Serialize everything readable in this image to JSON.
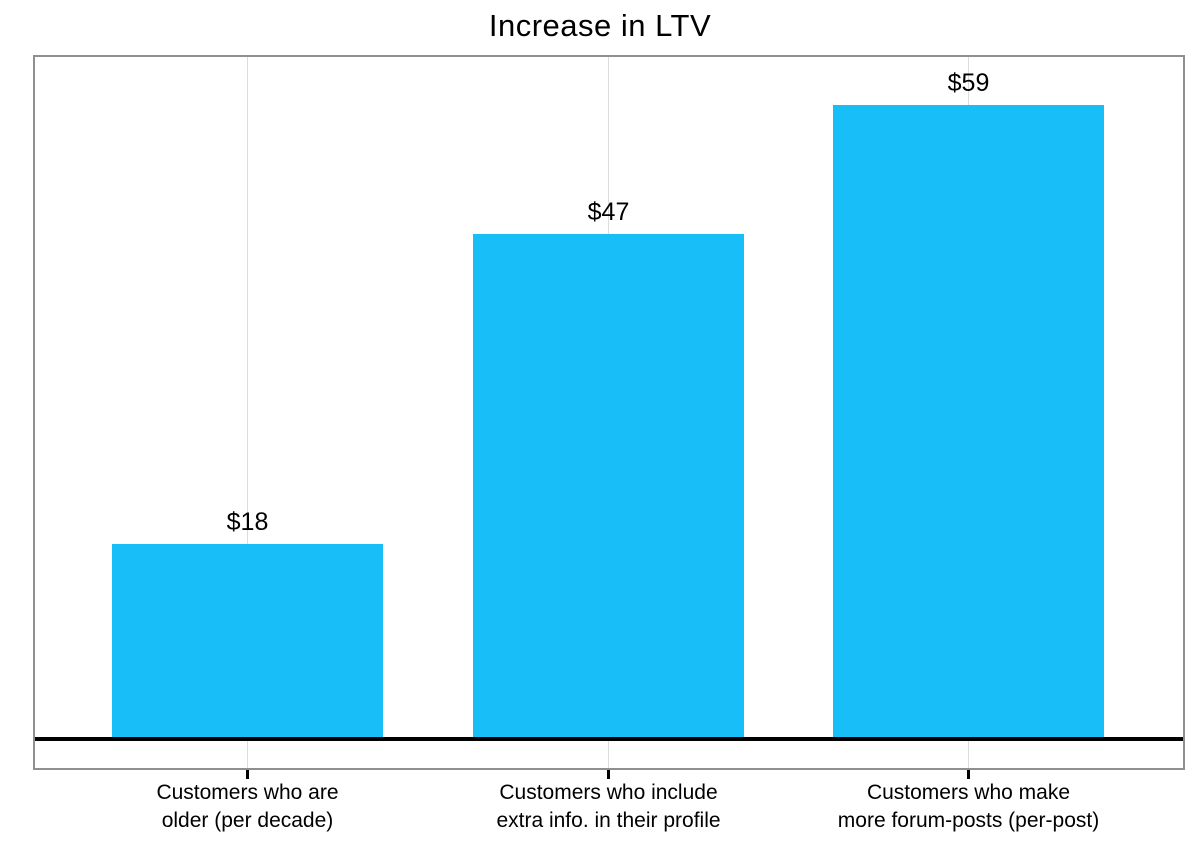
{
  "chart": {
    "title": "Increase in LTV"
  },
  "chart_data": {
    "type": "bar",
    "title": "Increase in LTV",
    "categories": [
      [
        "Customers who are",
        "older (per decade)"
      ],
      [
        "Customers who include",
        "extra info. in their profile"
      ],
      [
        "Customers who make",
        "more forum-posts (per-post)"
      ]
    ],
    "values": [
      18,
      47,
      59
    ],
    "value_labels": [
      "$18",
      "$47",
      "$59"
    ],
    "xlabel": "",
    "ylabel": "",
    "ylim": [
      0,
      63.5
    ],
    "grid": "vertical-at-category-centers",
    "legend": "none",
    "colors": {
      "bar": "#18bef8",
      "plot_border": "#8f8f8f",
      "gridline": "#dcdcdc",
      "zero_line": "#000000",
      "text": "#000000",
      "background": "#ffffff"
    }
  }
}
